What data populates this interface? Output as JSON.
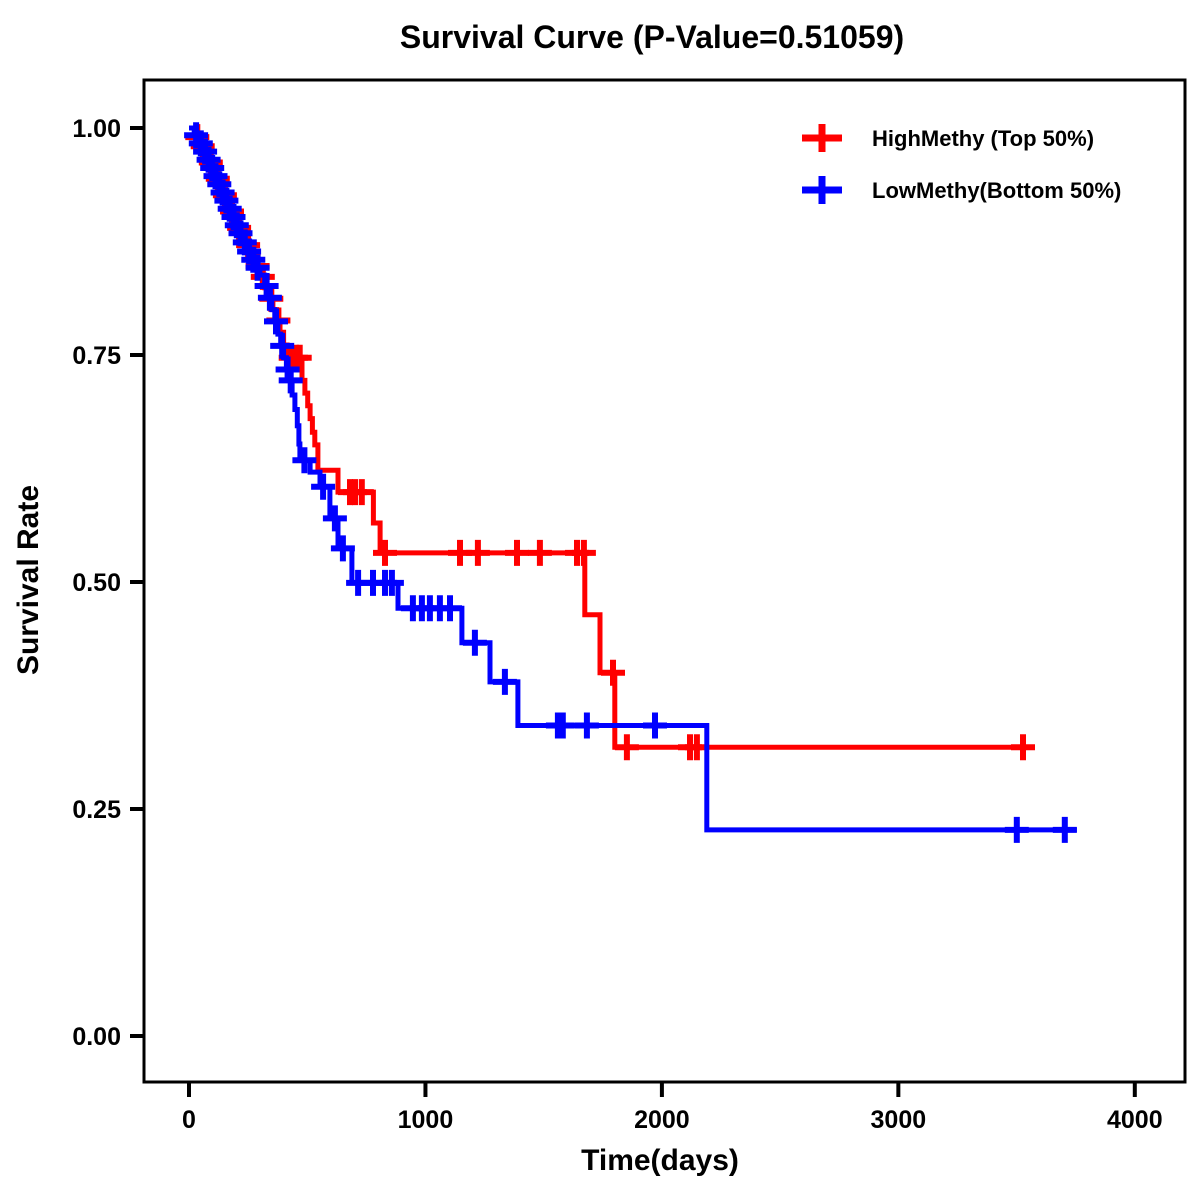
{
  "page": {
    "background_color": "#ffffff",
    "plot_frame_color": "#000000"
  },
  "chart_data": {
    "type": "line",
    "subtype": "kaplan-meier-step-survival",
    "title": "Survival Curve (P-Value=0.51059)",
    "p_value": "0.51059",
    "xlabel": "Time(days)",
    "ylabel": "Survival Rate",
    "grid": false,
    "legend_position": "top-right-inside",
    "axes": {
      "xlim": [
        -190,
        4210
      ],
      "ylim": [
        -0.05,
        1.053
      ],
      "xticks": [
        {
          "t": 0,
          "label": "0"
        },
        {
          "t": 1000,
          "label": "1000"
        },
        {
          "t": 2000,
          "label": "2000"
        },
        {
          "t": 3000,
          "label": "3000"
        },
        {
          "t": 4000,
          "label": "4000"
        }
      ],
      "yticks": [
        {
          "s": 0.0,
          "label": "0.00"
        },
        {
          "s": 0.25,
          "label": "0.25"
        },
        {
          "s": 0.5,
          "label": "0.50"
        },
        {
          "s": 0.75,
          "label": "0.75"
        },
        {
          "s": 1.0,
          "label": "1.00"
        }
      ]
    },
    "series": [
      {
        "name": "HighMethy (Top 50%)",
        "color": "#FF0000",
        "end_time": 3540,
        "points": [
          [
            0,
            1.0
          ],
          [
            25,
            0.99
          ],
          [
            45,
            0.98
          ],
          [
            65,
            0.971
          ],
          [
            85,
            0.962
          ],
          [
            100,
            0.953
          ],
          [
            115,
            0.944
          ],
          [
            130,
            0.935
          ],
          [
            145,
            0.926
          ],
          [
            160,
            0.917
          ],
          [
            175,
            0.908
          ],
          [
            190,
            0.899
          ],
          [
            205,
            0.89
          ],
          [
            220,
            0.881
          ],
          [
            240,
            0.871
          ],
          [
            260,
            0.86
          ],
          [
            280,
            0.848
          ],
          [
            300,
            0.836
          ],
          [
            320,
            0.824
          ],
          [
            340,
            0.812
          ],
          [
            355,
            0.8
          ],
          [
            370,
            0.788
          ],
          [
            385,
            0.775
          ],
          [
            400,
            0.761
          ],
          [
            415,
            0.747
          ],
          [
            478,
            0.722
          ],
          [
            490,
            0.708
          ],
          [
            502,
            0.694
          ],
          [
            512,
            0.68
          ],
          [
            522,
            0.665
          ],
          [
            532,
            0.651
          ],
          [
            545,
            0.623
          ],
          [
            630,
            0.599
          ],
          [
            780,
            0.565
          ],
          [
            808,
            0.532
          ],
          [
            1674,
            0.464
          ],
          [
            1738,
            0.4
          ],
          [
            1801,
            0.318
          ]
        ],
        "censor_marks": [
          [
            35,
            0.99
          ],
          [
            58,
            0.98
          ],
          [
            92,
            0.962
          ],
          [
            122,
            0.944
          ],
          [
            152,
            0.926
          ],
          [
            182,
            0.908
          ],
          [
            212,
            0.89
          ],
          [
            250,
            0.871
          ],
          [
            290,
            0.848
          ],
          [
            312,
            0.836
          ],
          [
            348,
            0.812
          ],
          [
            378,
            0.788
          ],
          [
            430,
            0.747
          ],
          [
            452,
            0.747
          ],
          [
            468,
            0.747
          ],
          [
            681,
            0.599
          ],
          [
            702,
            0.599
          ],
          [
            731,
            0.599
          ],
          [
            829,
            0.532
          ],
          [
            1146,
            0.532
          ],
          [
            1222,
            0.532
          ],
          [
            1387,
            0.532
          ],
          [
            1484,
            0.532
          ],
          [
            1641,
            0.532
          ],
          [
            1670,
            0.532
          ],
          [
            1793,
            0.4
          ],
          [
            1852,
            0.318
          ],
          [
            2119,
            0.318
          ],
          [
            2148,
            0.318
          ],
          [
            3527,
            0.318
          ]
        ]
      },
      {
        "name": "LowMethy(Bottom 50%)",
        "color": "#0000FF",
        "end_time": 3755,
        "points": [
          [
            0,
            1.0
          ],
          [
            22,
            0.992
          ],
          [
            40,
            0.983
          ],
          [
            58,
            0.974
          ],
          [
            75,
            0.965
          ],
          [
            90,
            0.956
          ],
          [
            105,
            0.947
          ],
          [
            120,
            0.938
          ],
          [
            135,
            0.929
          ],
          [
            150,
            0.92
          ],
          [
            165,
            0.911
          ],
          [
            180,
            0.902
          ],
          [
            195,
            0.893
          ],
          [
            210,
            0.884
          ],
          [
            228,
            0.874
          ],
          [
            246,
            0.864
          ],
          [
            264,
            0.855
          ],
          [
            282,
            0.846
          ],
          [
            300,
            0.838
          ],
          [
            320,
            0.826
          ],
          [
            335,
            0.813
          ],
          [
            350,
            0.8
          ],
          [
            363,
            0.787
          ],
          [
            376,
            0.773
          ],
          [
            388,
            0.76
          ],
          [
            400,
            0.747
          ],
          [
            412,
            0.734
          ],
          [
            424,
            0.722
          ],
          [
            436,
            0.706
          ],
          [
            448,
            0.69
          ],
          [
            458,
            0.672
          ],
          [
            465,
            0.652
          ],
          [
            469,
            0.634
          ],
          [
            512,
            0.621
          ],
          [
            554,
            0.605
          ],
          [
            596,
            0.57
          ],
          [
            630,
            0.537
          ],
          [
            689,
            0.499
          ],
          [
            884,
            0.471
          ],
          [
            1154,
            0.433
          ],
          [
            1273,
            0.39
          ],
          [
            1391,
            0.342
          ],
          [
            2190,
            0.227
          ]
        ],
        "censor_marks": [
          [
            30,
            0.992
          ],
          [
            50,
            0.983
          ],
          [
            68,
            0.974
          ],
          [
            83,
            0.965
          ],
          [
            98,
            0.956
          ],
          [
            112,
            0.947
          ],
          [
            128,
            0.938
          ],
          [
            142,
            0.929
          ],
          [
            158,
            0.92
          ],
          [
            172,
            0.911
          ],
          [
            188,
            0.902
          ],
          [
            202,
            0.893
          ],
          [
            218,
            0.884
          ],
          [
            236,
            0.874
          ],
          [
            254,
            0.864
          ],
          [
            272,
            0.855
          ],
          [
            290,
            0.846
          ],
          [
            328,
            0.826
          ],
          [
            342,
            0.813
          ],
          [
            368,
            0.787
          ],
          [
            394,
            0.76
          ],
          [
            417,
            0.734
          ],
          [
            430,
            0.722
          ],
          [
            488,
            0.634
          ],
          [
            567,
            0.605
          ],
          [
            617,
            0.57
          ],
          [
            651,
            0.537
          ],
          [
            715,
            0.499
          ],
          [
            778,
            0.499
          ],
          [
            829,
            0.499
          ],
          [
            858,
            0.499
          ],
          [
            947,
            0.471
          ],
          [
            985,
            0.471
          ],
          [
            1019,
            0.471
          ],
          [
            1061,
            0.471
          ],
          [
            1104,
            0.471
          ],
          [
            1209,
            0.433
          ],
          [
            1336,
            0.39
          ],
          [
            1560,
            0.342
          ],
          [
            1581,
            0.342
          ],
          [
            1683,
            0.342
          ],
          [
            1971,
            0.342
          ],
          [
            3501,
            0.227
          ],
          [
            3704,
            0.227
          ]
        ]
      }
    ]
  }
}
